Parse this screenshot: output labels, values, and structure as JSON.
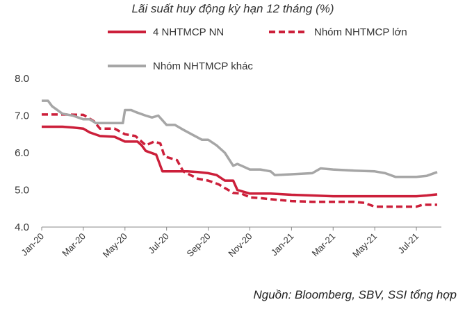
{
  "chart_data": {
    "type": "line",
    "title": "Lãi suất huy động kỳ hạn 12 tháng (%)",
    "source": "Nguồn:  Bloomberg, SBV, SSI tổng hợp",
    "ylim": [
      4.0,
      8.0
    ],
    "yticks": [
      "4.0",
      "5.0",
      "6.0",
      "7.0",
      "8.0"
    ],
    "ytick_values": [
      4.0,
      5.0,
      6.0,
      7.0,
      8.0
    ],
    "xlim": [
      0,
      19.2
    ],
    "xtick_labels": [
      "Jan-20",
      "Mar-20",
      "May-20",
      "Jul-20",
      "Sep-20",
      "Nov-20",
      "Jan-21",
      "Mar-21",
      "May-21",
      "Jul-21"
    ],
    "xtick_positions": [
      0,
      2,
      4,
      6,
      8,
      10,
      12,
      14,
      16,
      18
    ],
    "grid": false,
    "legend_placement": "top",
    "series": [
      {
        "name": "4 NHTMCP NN",
        "color": "#cc1f3a",
        "dash": "solid",
        "points": [
          [
            0,
            6.7
          ],
          [
            0.5,
            6.7
          ],
          [
            1.0,
            6.7
          ],
          [
            1.5,
            6.68
          ],
          [
            2.0,
            6.65
          ],
          [
            2.3,
            6.55
          ],
          [
            2.8,
            6.45
          ],
          [
            3.5,
            6.43
          ],
          [
            4.0,
            6.3
          ],
          [
            4.6,
            6.3
          ],
          [
            4.8,
            6.2
          ],
          [
            5.0,
            6.05
          ],
          [
            5.5,
            5.95
          ],
          [
            5.8,
            5.5
          ],
          [
            6.5,
            5.5
          ],
          [
            7.0,
            5.5
          ],
          [
            7.5,
            5.48
          ],
          [
            8.0,
            5.45
          ],
          [
            8.4,
            5.4
          ],
          [
            8.8,
            5.25
          ],
          [
            9.2,
            5.25
          ],
          [
            9.4,
            5.0
          ],
          [
            9.7,
            4.95
          ],
          [
            10.0,
            4.9
          ],
          [
            11.0,
            4.9
          ],
          [
            12.0,
            4.87
          ],
          [
            13.0,
            4.85
          ],
          [
            14.0,
            4.83
          ],
          [
            15.0,
            4.83
          ],
          [
            16.0,
            4.83
          ],
          [
            17.0,
            4.83
          ],
          [
            18.0,
            4.83
          ],
          [
            18.5,
            4.85
          ],
          [
            19.0,
            4.88
          ]
        ]
      },
      {
        "name": "Nhóm NHTMCP lớn",
        "color": "#cc1f3a",
        "dash": "dashed",
        "points": [
          [
            0,
            7.03
          ],
          [
            1.0,
            7.03
          ],
          [
            2.0,
            7.02
          ],
          [
            2.5,
            6.85
          ],
          [
            2.8,
            6.65
          ],
          [
            3.5,
            6.65
          ],
          [
            4.0,
            6.5
          ],
          [
            4.5,
            6.45
          ],
          [
            4.8,
            6.3
          ],
          [
            5.0,
            6.2
          ],
          [
            5.4,
            6.3
          ],
          [
            5.7,
            6.25
          ],
          [
            5.9,
            5.9
          ],
          [
            6.5,
            5.8
          ],
          [
            6.8,
            5.5
          ],
          [
            7.5,
            5.3
          ],
          [
            8.0,
            5.25
          ],
          [
            8.5,
            5.15
          ],
          [
            8.8,
            5.05
          ],
          [
            9.2,
            4.92
          ],
          [
            9.6,
            4.9
          ],
          [
            10.0,
            4.8
          ],
          [
            10.5,
            4.78
          ],
          [
            11.0,
            4.75
          ],
          [
            12.0,
            4.7
          ],
          [
            13.0,
            4.68
          ],
          [
            14.0,
            4.68
          ],
          [
            15.0,
            4.68
          ],
          [
            15.5,
            4.65
          ],
          [
            16.0,
            4.55
          ],
          [
            17.0,
            4.55
          ],
          [
            18.0,
            4.55
          ],
          [
            18.3,
            4.6
          ],
          [
            19.0,
            4.6
          ]
        ]
      },
      {
        "name": "Nhóm NHTMCP khác",
        "color": "#a6a6a6",
        "dash": "solid",
        "points": [
          [
            0,
            7.4
          ],
          [
            0.3,
            7.4
          ],
          [
            0.5,
            7.25
          ],
          [
            1.0,
            7.05
          ],
          [
            1.5,
            7.0
          ],
          [
            2.0,
            6.9
          ],
          [
            2.3,
            6.9
          ],
          [
            2.6,
            6.8
          ],
          [
            3.0,
            6.8
          ],
          [
            3.5,
            6.8
          ],
          [
            3.9,
            6.8
          ],
          [
            4.0,
            7.15
          ],
          [
            4.3,
            7.15
          ],
          [
            4.5,
            7.1
          ],
          [
            5.0,
            7.0
          ],
          [
            5.3,
            6.95
          ],
          [
            5.6,
            7.0
          ],
          [
            6.0,
            6.75
          ],
          [
            6.4,
            6.75
          ],
          [
            6.8,
            6.62
          ],
          [
            7.2,
            6.5
          ],
          [
            7.7,
            6.35
          ],
          [
            8.0,
            6.35
          ],
          [
            8.4,
            6.2
          ],
          [
            8.8,
            6.0
          ],
          [
            9.2,
            5.65
          ],
          [
            9.4,
            5.7
          ],
          [
            9.6,
            5.65
          ],
          [
            10.0,
            5.55
          ],
          [
            10.5,
            5.55
          ],
          [
            11.0,
            5.5
          ],
          [
            11.2,
            5.4
          ],
          [
            12.0,
            5.42
          ],
          [
            13.0,
            5.45
          ],
          [
            13.4,
            5.58
          ],
          [
            14.0,
            5.55
          ],
          [
            15.0,
            5.52
          ],
          [
            16.0,
            5.5
          ],
          [
            16.5,
            5.45
          ],
          [
            17.0,
            5.35
          ],
          [
            18.0,
            5.35
          ],
          [
            18.5,
            5.38
          ],
          [
            19.0,
            5.48
          ]
        ]
      }
    ]
  }
}
